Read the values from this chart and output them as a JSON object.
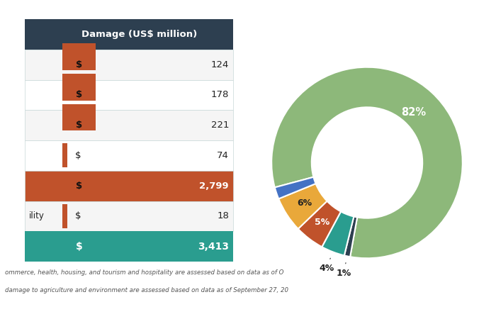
{
  "table_header": "Damage (US$ million)",
  "header_bg": "#2d3f50",
  "header_fg": "#ffffff",
  "rows": [
    {
      "label": "",
      "dollar": "$",
      "value": "124",
      "row_bg": "#f5f5f5",
      "has_red_box": true,
      "has_red_bar": false
    },
    {
      "label": "",
      "dollar": "$",
      "value": "178",
      "row_bg": "#ffffff",
      "has_red_box": true,
      "has_red_bar": false
    },
    {
      "label": "",
      "dollar": "$",
      "value": "221",
      "row_bg": "#f5f5f5",
      "has_red_box": true,
      "has_red_bar": false
    },
    {
      "label": "",
      "dollar": "$",
      "value": "74",
      "row_bg": "#ffffff",
      "has_red_box": false,
      "has_red_bar": true
    },
    {
      "label": "",
      "dollar": "$",
      "value": "2,799",
      "row_bg": "#c0522b",
      "has_red_box": false,
      "has_red_bar": false
    },
    {
      "label": "ility",
      "dollar": "$",
      "value": "18",
      "row_bg": "#f5f5f5",
      "has_red_box": false,
      "has_red_bar": true
    }
  ],
  "total_row": {
    "dollar": "$",
    "value": "3,413",
    "bg": "#2a9d8f",
    "fg": "#ffffff"
  },
  "footnote_line1": "ommerce, health, housing, and tourism and hospitality are assessed based on data as of O",
  "footnote_line2": "damage to agriculture and environment are assessed based on data as of September 27, 20",
  "red_box_color": "#c0522b",
  "red_bar_color": "#c0522b",
  "border_color": "#c8d8d8",
  "pie_slices": [
    82,
    1,
    4,
    5,
    6,
    2
  ],
  "pie_colors": [
    "#8db87a",
    "#2d3f50",
    "#2a9d8f",
    "#c0522b",
    "#e9a83a",
    "#4472c4"
  ],
  "pie_startangle": 195,
  "pie_labels_inside": [
    {
      "idx": 0,
      "label": "82%",
      "color": "#ffffff",
      "r": 0.72,
      "fontsize": 11
    },
    {
      "idx": 2,
      "label": "",
      "color": "#ffffff",
      "r": 0.78,
      "fontsize": 9
    },
    {
      "idx": 3,
      "label": "5%",
      "color": "#ffffff",
      "r": 0.78,
      "fontsize": 9
    },
    {
      "idx": 4,
      "label": "6%",
      "color": "#ffffff",
      "r": 0.78,
      "fontsize": 9
    }
  ],
  "pie_labels_outside": [
    {
      "idx": 1,
      "label": "1%",
      "color": "#222222",
      "r": 1.18,
      "fontsize": 9
    },
    {
      "idx": 5,
      "label": "",
      "color": "#222222",
      "r": 1.18,
      "fontsize": 9
    },
    {
      "idx": 2,
      "label": "4%",
      "color": "#222222",
      "r": 1.18,
      "fontsize": 9
    }
  ],
  "background": "#ffffff"
}
